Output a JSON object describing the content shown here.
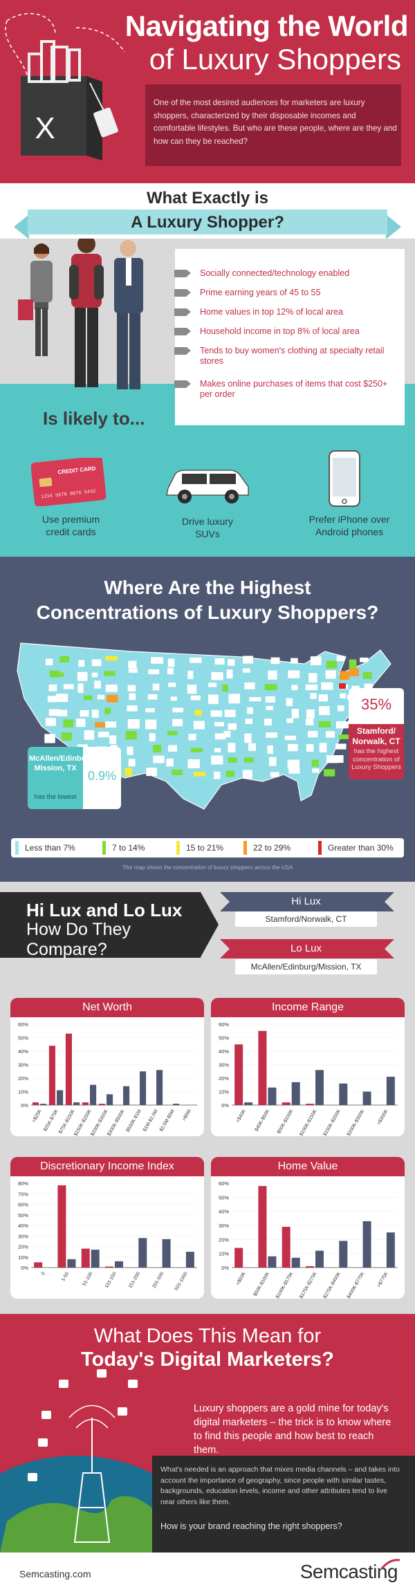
{
  "header": {
    "title_line1": "Navigating the World",
    "title_line2": "of Luxury Shoppers",
    "intro": "One of the most desired audiences for marketers are luxury shoppers, characterized by their disposable incomes and comfortable lifestyles. But who are these people, where are they and how can they be reached?"
  },
  "definition": {
    "title_line1": "What Exactly is",
    "title_line2": "A Luxury Shopper?",
    "attributes": [
      "Socially connected/technology enabled",
      "Prime earning years of 45 to 55",
      "Home values in top 12% of local area",
      "Household income in top 8% of local area",
      "Tends to buy women's clothing at specialty retail stores",
      "Makes online purchases of items that cost $250+ per order"
    ],
    "likely_title": "Is likely to...",
    "likely_items": [
      "Use premium credit cards",
      "Drive luxury SUVs",
      "Prefer iPhone over Android phones"
    ],
    "card_text": "CREDIT CARD",
    "card_number": "1234 5678 9876 5432"
  },
  "map": {
    "title_line1": "Where Are the Highest",
    "title_line2": "Concentrations of Luxury Shoppers?",
    "highest": {
      "pct": "35%",
      "location": "Stamford/ Norwalk, CT",
      "desc": "has the highest concentration of Luxury Shoppers"
    },
    "lowest": {
      "pct": "0.9%",
      "location": "McAllen/Edinburg/ Mission, TX",
      "desc": "has the lowest"
    },
    "legend": [
      {
        "label": "Less than 7%",
        "color": "#9fe3ea"
      },
      {
        "label": "7 to 14%",
        "color": "#7bdc3a"
      },
      {
        "label": "15 to 21%",
        "color": "#f5e93a"
      },
      {
        "label": "22 to 29%",
        "color": "#f59a23"
      },
      {
        "label": "Greater than 30%",
        "color": "#d62828"
      }
    ],
    "note": "This map shows the concentration of luxury shoppers across the USA",
    "colors": {
      "base": "#8fdbe6",
      "land": "#ffffff"
    }
  },
  "compare": {
    "title_line1": "Hi Lux and Lo Lux",
    "title_line2": "How Do They",
    "title_line3": "Compare?",
    "hi_label": "Hi Lux",
    "hi_location": "Stamford/Norwalk, CT",
    "lo_label": "Lo Lux",
    "lo_location": "McAllen/Edinburg/Mission, TX",
    "colors": {
      "hi": "#c22f48",
      "lo": "#4f5872"
    }
  },
  "chart_data": [
    {
      "type": "bar",
      "title": "Net Worth",
      "categories": [
        "<$25K",
        "$25K-$75K",
        "$75K-$150K",
        "$150K-$200K",
        "$200K-$300K",
        "$300K-$500K",
        "$500K-$1M",
        "$1M-$2.5M",
        "$2.5M-$5M",
        ">$5M"
      ],
      "series": [
        {
          "values": [
            2,
            44,
            53,
            2,
            1,
            0,
            0,
            0,
            0,
            0
          ]
        },
        {
          "values": [
            1,
            11,
            2,
            15,
            8,
            14,
            25,
            26,
            1,
            0
          ]
        }
      ],
      "y_ticks": [
        "60%",
        "50%",
        "40%",
        "30%",
        "20%",
        "10%",
        "0%"
      ],
      "ylim": [
        0,
        60
      ],
      "colors": [
        "#c22f48",
        "#4f5872"
      ]
    },
    {
      "type": "bar",
      "title": "Income Range",
      "categories": [
        "<$40K",
        "$40K-$50K",
        "$50K-$100K",
        "$100K-$150K",
        "$150K-$200K",
        "$200K-$300K",
        ">$300K"
      ],
      "series": [
        {
          "values": [
            45,
            55,
            2,
            1,
            0,
            0,
            0
          ]
        },
        {
          "values": [
            2,
            13,
            17,
            26,
            16,
            10,
            21
          ]
        }
      ],
      "y_ticks": [
        "60%",
        "50%",
        "40%",
        "30%",
        "20%",
        "10%",
        "0%"
      ],
      "ylim": [
        0,
        60
      ],
      "colors": [
        "#c22f48",
        "#4f5872"
      ]
    },
    {
      "type": "bar",
      "title": "Discretionary Income Index",
      "categories": [
        "0",
        "1-50",
        "51-100",
        "101-150",
        "151-200",
        "201-500",
        "501-1000"
      ],
      "series": [
        {
          "values": [
            5,
            78,
            18,
            1,
            0,
            0,
            0
          ]
        },
        {
          "values": [
            0,
            8,
            17,
            6,
            28,
            27,
            15
          ]
        }
      ],
      "y_ticks": [
        "80%",
        "70%",
        "60%",
        "50%",
        "40%",
        "30%",
        "20%",
        "10%",
        "0%"
      ],
      "ylim": [
        0,
        80
      ],
      "colors": [
        "#c22f48",
        "#4f5872"
      ]
    },
    {
      "type": "bar",
      "title": "Home Value",
      "categories": [
        "<$50K",
        "$50K-$100K",
        "$100K-$175K",
        "$175K-$275K",
        "$275K-$400K",
        "$400K-$775K",
        ">$775K"
      ],
      "series": [
        {
          "values": [
            14,
            58,
            29,
            1,
            0,
            0,
            0
          ]
        },
        {
          "values": [
            0,
            8,
            7,
            12,
            19,
            33,
            25
          ]
        }
      ],
      "y_ticks": [
        "60%",
        "50%",
        "40%",
        "30%",
        "20%",
        "10%",
        "0%"
      ],
      "ylim": [
        0,
        60
      ],
      "colors": [
        "#c22f48",
        "#4f5872"
      ]
    }
  ],
  "meaning": {
    "title_line1": "What Does This Mean for",
    "title_line2": "Today's Digital Marketers?",
    "body1": "Luxury shoppers are a gold mine for today's digital marketers – the trick is to know where to find this people and how best to reach them.",
    "body2": "What's needed is an approach that mixes media channels – and takes into account the importance of geography, since people with similar tastes, backgrounds, education levels, income and other attributes tend to live near others like them.",
    "question": "How is your brand reaching the right shoppers?"
  },
  "footer": {
    "url": "Semcasting.com",
    "logo": "Semcasting"
  }
}
